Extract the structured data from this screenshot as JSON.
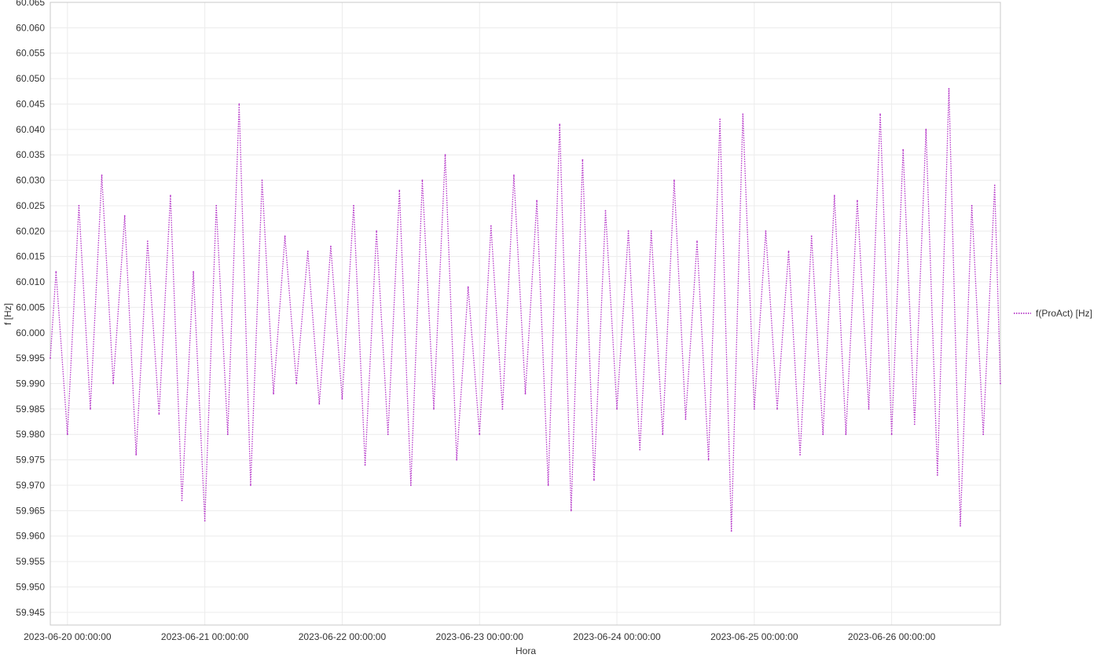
{
  "chart_data": {
    "type": "line",
    "title": "",
    "xlabel": "Hora",
    "ylabel": "f [Hz]",
    "ylim": [
      59.9425,
      60.065
    ],
    "y_ticks": [
      60.065,
      60.06,
      60.055,
      60.05,
      60.045,
      60.04,
      60.035,
      60.03,
      60.025,
      60.02,
      60.015,
      60.01,
      60.005,
      60.0,
      59.995,
      59.99,
      59.985,
      59.98,
      59.975,
      59.97,
      59.965,
      59.96,
      59.955,
      59.95,
      59.945
    ],
    "y_tick_labels": [
      "60.065",
      "60.060",
      "60.055",
      "60.050",
      "60.045",
      "60.040",
      "60.035",
      "60.030",
      "60.025",
      "60.020",
      "60.015",
      "60.010",
      "60.005",
      "60.000",
      "59.995",
      "59.990",
      "59.985",
      "59.980",
      "59.975",
      "59.970",
      "59.965",
      "59.960",
      "59.955",
      "59.950",
      "59.945"
    ],
    "xlim": [
      "2023-06-19 21:00:00",
      "2023-06-26 19:00:00"
    ],
    "x_ticks": [
      "2023-06-20 00:00:00",
      "2023-06-21 00:00:00",
      "2023-06-22 00:00:00",
      "2023-06-23 00:00:00",
      "2023-06-24 00:00:00",
      "2023-06-25 00:00:00",
      "2023-06-26 00:00:00"
    ],
    "grid": true,
    "legend_position": "right",
    "series": [
      {
        "name": "f(ProAct) [Hz]",
        "color": "#b536c8",
        "line_style": "dotted",
        "x": [
          "2023-06-19 21:00:00",
          "2023-06-19 22:00:00",
          "2023-06-20 00:00:00",
          "2023-06-20 02:00:00",
          "2023-06-20 04:00:00",
          "2023-06-20 06:00:00",
          "2023-06-20 08:00:00",
          "2023-06-20 10:00:00",
          "2023-06-20 12:00:00",
          "2023-06-20 14:00:00",
          "2023-06-20 16:00:00",
          "2023-06-20 18:00:00",
          "2023-06-20 20:00:00",
          "2023-06-20 22:00:00",
          "2023-06-21 00:00:00",
          "2023-06-21 02:00:00",
          "2023-06-21 04:00:00",
          "2023-06-21 06:00:00",
          "2023-06-21 08:00:00",
          "2023-06-21 10:00:00",
          "2023-06-21 12:00:00",
          "2023-06-21 14:00:00",
          "2023-06-21 16:00:00",
          "2023-06-21 18:00:00",
          "2023-06-21 20:00:00",
          "2023-06-21 22:00:00",
          "2023-06-22 00:00:00",
          "2023-06-22 02:00:00",
          "2023-06-22 04:00:00",
          "2023-06-22 06:00:00",
          "2023-06-22 08:00:00",
          "2023-06-22 10:00:00",
          "2023-06-22 12:00:00",
          "2023-06-22 14:00:00",
          "2023-06-22 16:00:00",
          "2023-06-22 18:00:00",
          "2023-06-22 20:00:00",
          "2023-06-22 22:00:00",
          "2023-06-23 00:00:00",
          "2023-06-23 02:00:00",
          "2023-06-23 04:00:00",
          "2023-06-23 06:00:00",
          "2023-06-23 08:00:00",
          "2023-06-23 10:00:00",
          "2023-06-23 12:00:00",
          "2023-06-23 14:00:00",
          "2023-06-23 16:00:00",
          "2023-06-23 18:00:00",
          "2023-06-23 20:00:00",
          "2023-06-23 22:00:00",
          "2023-06-24 00:00:00",
          "2023-06-24 02:00:00",
          "2023-06-24 04:00:00",
          "2023-06-24 06:00:00",
          "2023-06-24 08:00:00",
          "2023-06-24 10:00:00",
          "2023-06-24 12:00:00",
          "2023-06-24 14:00:00",
          "2023-06-24 16:00:00",
          "2023-06-24 18:00:00",
          "2023-06-24 20:00:00",
          "2023-06-24 22:00:00",
          "2023-06-25 00:00:00",
          "2023-06-25 02:00:00",
          "2023-06-25 04:00:00",
          "2023-06-25 06:00:00",
          "2023-06-25 08:00:00",
          "2023-06-25 10:00:00",
          "2023-06-25 12:00:00",
          "2023-06-25 14:00:00",
          "2023-06-25 16:00:00",
          "2023-06-25 18:00:00",
          "2023-06-25 20:00:00",
          "2023-06-25 22:00:00",
          "2023-06-26 00:00:00",
          "2023-06-26 02:00:00",
          "2023-06-26 04:00:00",
          "2023-06-26 06:00:00",
          "2023-06-26 08:00:00",
          "2023-06-26 10:00:00",
          "2023-06-26 12:00:00",
          "2023-06-26 14:00:00",
          "2023-06-26 16:00:00",
          "2023-06-26 18:00:00",
          "2023-06-26 19:00:00"
        ],
        "y": [
          59.995,
          60.012,
          59.98,
          60.025,
          59.985,
          60.031,
          59.99,
          60.023,
          59.976,
          60.018,
          59.984,
          60.027,
          59.967,
          60.012,
          59.963,
          60.025,
          59.98,
          60.045,
          59.97,
          60.03,
          59.988,
          60.019,
          59.99,
          60.016,
          59.986,
          60.017,
          59.987,
          60.025,
          59.974,
          60.02,
          59.98,
          60.028,
          59.97,
          60.03,
          59.985,
          60.035,
          59.975,
          60.009,
          59.98,
          60.021,
          59.985,
          60.031,
          59.988,
          60.026,
          59.97,
          60.041,
          59.965,
          60.034,
          59.971,
          60.024,
          59.985,
          60.02,
          59.977,
          60.02,
          59.98,
          60.03,
          59.983,
          60.018,
          59.975,
          60.042,
          59.961,
          60.043,
          59.985,
          60.02,
          59.985,
          60.016,
          59.976,
          60.019,
          59.98,
          60.027,
          59.98,
          60.026,
          59.985,
          60.043,
          59.98,
          60.036,
          59.982,
          60.04,
          59.972,
          60.048,
          59.962,
          60.025,
          59.98,
          60.029,
          59.99
        ]
      }
    ]
  }
}
